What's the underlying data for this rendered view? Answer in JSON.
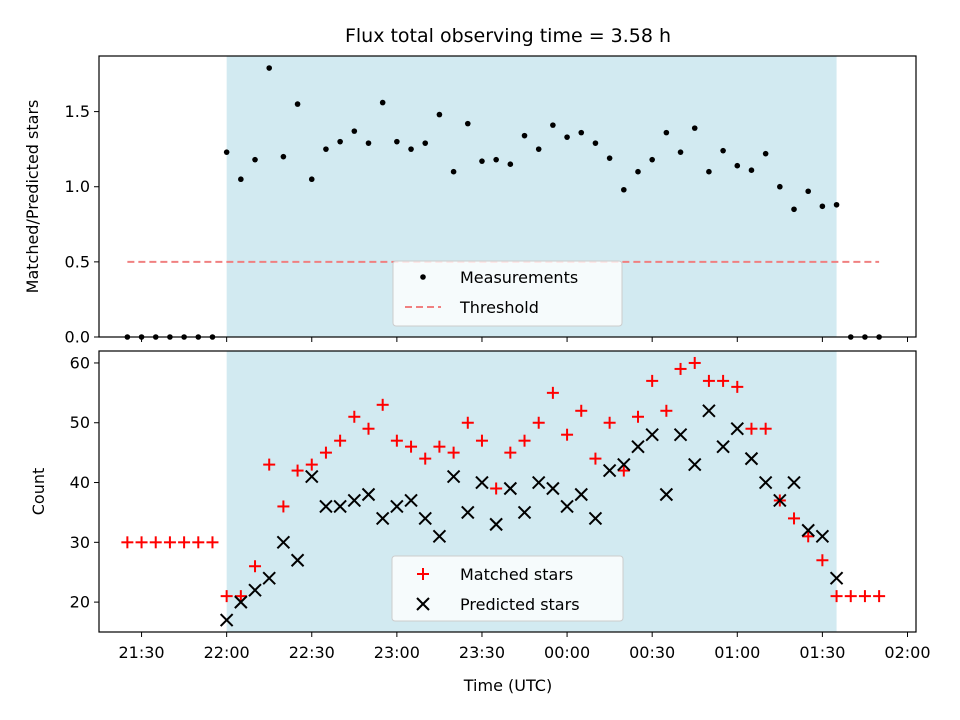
{
  "chart_data": {
    "type": "scatter",
    "title": "Flux total observing time = 3.58 h",
    "xlabel": "Time (UTC)",
    "x_ticks": [
      "21:30",
      "22:00",
      "22:30",
      "23:00",
      "23:30",
      "00:00",
      "00:30",
      "01:00",
      "01:30",
      "02:00"
    ],
    "x_range": [
      "21:15",
      "02:03"
    ],
    "observing_window": [
      "22:00",
      "01:35"
    ],
    "shade_color": "#add8e6",
    "panels": [
      {
        "ylabel": "Matched/Predicted stars",
        "ylim": [
          0,
          1.87
        ],
        "y_ticks": [
          0.0,
          0.5,
          1.0,
          1.5
        ],
        "y_tick_labels": [
          "0.0",
          "0.5",
          "1.0",
          "1.5"
        ],
        "legend_position": "lower-center",
        "series": [
          {
            "name": "Measurements",
            "marker": "dot",
            "color": "#000000",
            "points": [
              [
                "21:25",
                0
              ],
              [
                "21:30",
                0
              ],
              [
                "21:35",
                0
              ],
              [
                "21:40",
                0
              ],
              [
                "21:45",
                0
              ],
              [
                "21:50",
                0
              ],
              [
                "21:55",
                0
              ],
              [
                "22:00",
                1.23
              ],
              [
                "22:05",
                1.05
              ],
              [
                "22:10",
                1.18
              ],
              [
                "22:15",
                1.79
              ],
              [
                "22:20",
                1.2
              ],
              [
                "22:25",
                1.55
              ],
              [
                "22:30",
                1.05
              ],
              [
                "22:35",
                1.25
              ],
              [
                "22:40",
                1.3
              ],
              [
                "22:45",
                1.37
              ],
              [
                "22:50",
                1.29
              ],
              [
                "22:55",
                1.56
              ],
              [
                "23:00",
                1.3
              ],
              [
                "23:05",
                1.25
              ],
              [
                "23:10",
                1.29
              ],
              [
                "23:15",
                1.48
              ],
              [
                "23:20",
                1.1
              ],
              [
                "23:25",
                1.42
              ],
              [
                "23:30",
                1.17
              ],
              [
                "23:35",
                1.18
              ],
              [
                "23:40",
                1.15
              ],
              [
                "23:45",
                1.34
              ],
              [
                "23:50",
                1.25
              ],
              [
                "23:55",
                1.41
              ],
              [
                "00:00",
                1.33
              ],
              [
                "00:05",
                1.36
              ],
              [
                "00:10",
                1.29
              ],
              [
                "00:15",
                1.19
              ],
              [
                "00:20",
                0.98
              ],
              [
                "00:25",
                1.1
              ],
              [
                "00:30",
                1.18
              ],
              [
                "00:35",
                1.36
              ],
              [
                "00:40",
                1.23
              ],
              [
                "00:45",
                1.39
              ],
              [
                "00:50",
                1.1
              ],
              [
                "00:55",
                1.24
              ],
              [
                "01:00",
                1.14
              ],
              [
                "01:05",
                1.11
              ],
              [
                "01:10",
                1.22
              ],
              [
                "01:15",
                1.0
              ],
              [
                "01:20",
                0.85
              ],
              [
                "01:25",
                0.97
              ],
              [
                "01:30",
                0.87
              ],
              [
                "01:35",
                0.88
              ],
              [
                "01:40",
                0
              ],
              [
                "01:45",
                0
              ],
              [
                "01:50",
                0
              ]
            ]
          },
          {
            "name": "Threshold",
            "type": "line",
            "style": "dashed",
            "color": "#f08080",
            "x": [
              "21:25",
              "01:50"
            ],
            "y": 0.5
          }
        ]
      },
      {
        "ylabel": "Count",
        "ylim": [
          15,
          62
        ],
        "y_ticks": [
          20,
          30,
          40,
          50,
          60
        ],
        "y_tick_labels": [
          "20",
          "30",
          "40",
          "50",
          "60"
        ],
        "legend_position": "lower-center",
        "series": [
          {
            "name": "Matched stars",
            "marker": "plus",
            "color": "#ff0000",
            "points": [
              [
                "21:25",
                30
              ],
              [
                "21:30",
                30
              ],
              [
                "21:35",
                30
              ],
              [
                "21:40",
                30
              ],
              [
                "21:45",
                30
              ],
              [
                "21:50",
                30
              ],
              [
                "21:55",
                30
              ],
              [
                "22:00",
                21
              ],
              [
                "22:05",
                21
              ],
              [
                "22:10",
                26
              ],
              [
                "22:15",
                43
              ],
              [
                "22:20",
                36
              ],
              [
                "22:25",
                42
              ],
              [
                "22:30",
                43
              ],
              [
                "22:35",
                45
              ],
              [
                "22:40",
                47
              ],
              [
                "22:45",
                51
              ],
              [
                "22:50",
                49
              ],
              [
                "22:55",
                53
              ],
              [
                "23:00",
                47
              ],
              [
                "23:05",
                46
              ],
              [
                "23:10",
                44
              ],
              [
                "23:15",
                46
              ],
              [
                "23:20",
                45
              ],
              [
                "23:25",
                50
              ],
              [
                "23:30",
                47
              ],
              [
                "23:35",
                39
              ],
              [
                "23:40",
                45
              ],
              [
                "23:45",
                47
              ],
              [
                "23:50",
                50
              ],
              [
                "23:55",
                55
              ],
              [
                "00:00",
                48
              ],
              [
                "00:05",
                52
              ],
              [
                "00:10",
                44
              ],
              [
                "00:15",
                50
              ],
              [
                "00:20",
                42
              ],
              [
                "00:25",
                51
              ],
              [
                "00:30",
                57
              ],
              [
                "00:35",
                52
              ],
              [
                "00:40",
                59
              ],
              [
                "00:45",
                60
              ],
              [
                "00:50",
                57
              ],
              [
                "00:55",
                57
              ],
              [
                "01:00",
                56
              ],
              [
                "01:05",
                49
              ],
              [
                "01:10",
                49
              ],
              [
                "01:15",
                37
              ],
              [
                "01:20",
                34
              ],
              [
                "01:25",
                31
              ],
              [
                "01:30",
                27
              ],
              [
                "01:35",
                21
              ],
              [
                "01:40",
                21
              ],
              [
                "01:45",
                21
              ],
              [
                "01:50",
                21
              ]
            ]
          },
          {
            "name": "Predicted stars",
            "marker": "x",
            "color": "#000000",
            "points": [
              [
                "22:00",
                17
              ],
              [
                "22:05",
                20
              ],
              [
                "22:10",
                22
              ],
              [
                "22:15",
                24
              ],
              [
                "22:20",
                30
              ],
              [
                "22:25",
                27
              ],
              [
                "22:30",
                41
              ],
              [
                "22:35",
                36
              ],
              [
                "22:40",
                36
              ],
              [
                "22:45",
                37
              ],
              [
                "22:50",
                38
              ],
              [
                "22:55",
                34
              ],
              [
                "23:00",
                36
              ],
              [
                "23:05",
                37
              ],
              [
                "23:10",
                34
              ],
              [
                "23:15",
                31
              ],
              [
                "23:20",
                41
              ],
              [
                "23:25",
                35
              ],
              [
                "23:30",
                40
              ],
              [
                "23:35",
                33
              ],
              [
                "23:40",
                39
              ],
              [
                "23:45",
                35
              ],
              [
                "23:50",
                40
              ],
              [
                "23:55",
                39
              ],
              [
                "00:00",
                36
              ],
              [
                "00:05",
                38
              ],
              [
                "00:10",
                34
              ],
              [
                "00:15",
                42
              ],
              [
                "00:20",
                43
              ],
              [
                "00:25",
                46
              ],
              [
                "00:30",
                48
              ],
              [
                "00:35",
                38
              ],
              [
                "00:40",
                48
              ],
              [
                "00:45",
                43
              ],
              [
                "00:50",
                52
              ],
              [
                "00:55",
                46
              ],
              [
                "01:00",
                49
              ],
              [
                "01:05",
                44
              ],
              [
                "01:10",
                40
              ],
              [
                "01:15",
                37
              ],
              [
                "01:20",
                40
              ],
              [
                "01:25",
                32
              ],
              [
                "01:30",
                31
              ],
              [
                "01:35",
                24
              ]
            ]
          }
        ]
      }
    ]
  }
}
